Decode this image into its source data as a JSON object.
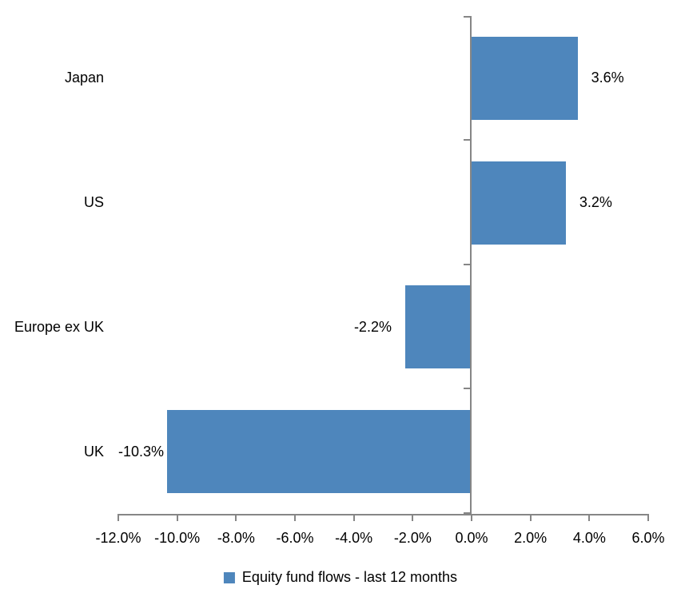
{
  "chart_data": {
    "type": "bar",
    "orientation": "horizontal",
    "title": "",
    "categories": [
      "Japan",
      "US",
      "Europe ex UK",
      "UK"
    ],
    "values": [
      3.6,
      3.2,
      -2.2,
      -10.3
    ],
    "data_labels": [
      "3.6%",
      "3.2%",
      "-2.2%",
      "-10.3%"
    ],
    "series": [
      {
        "name": "Equity fund flows - last 12 months",
        "values": [
          3.6,
          3.2,
          -2.2,
          -10.3
        ]
      }
    ],
    "xlabel": "",
    "ylabel": "",
    "xlim": [
      -12,
      6
    ],
    "x_tick_values": [
      -12,
      -10,
      -8,
      -6,
      -4,
      -2,
      0,
      2,
      4,
      6
    ],
    "x_tick_labels": [
      "-12.0%",
      "-10.0%",
      "-8.0%",
      "-6.0%",
      "-4.0%",
      "-2.0%",
      "0.0%",
      "2.0%",
      "4.0%",
      "6.0%"
    ],
    "grid": false,
    "legend_position": "bottom",
    "colors": {
      "bar": "#4E86BC",
      "axis": "#868686",
      "text": "#000000",
      "background": "#FFFFFF"
    },
    "legend": {
      "label": "Equity fund flows - last 12 months",
      "marker": "square-icon",
      "marker_color": "#4E86BC"
    }
  }
}
